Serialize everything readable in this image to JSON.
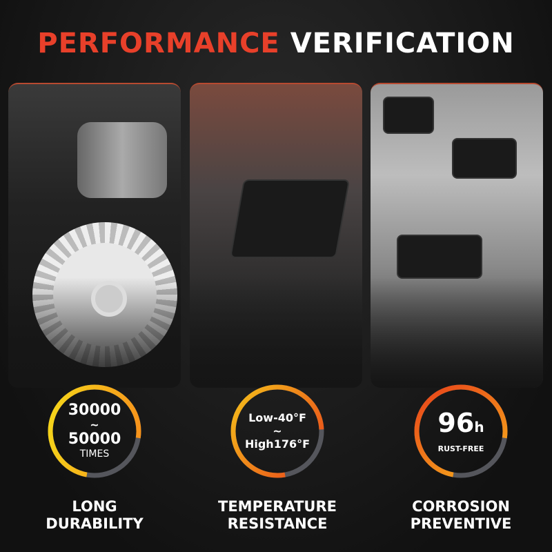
{
  "title": {
    "accent": "PERFORMANCE",
    "rest": "VERIFICATION"
  },
  "colors": {
    "accent": "#e8402a",
    "ring_orange": "#f7a21b",
    "ring_red": "#e8401a",
    "ring_yellow": "#f5d21a",
    "ring_gray": "#55565c"
  },
  "features": [
    {
      "line1": "30000",
      "sep": "~",
      "line2": "50000",
      "unit": "TIMES",
      "label1": "LONG",
      "label2": "DURABILITY"
    },
    {
      "line1": "Low-40°F",
      "sep": "~",
      "line2": "High176°F",
      "label1": "TEMPERATURE",
      "label2": "RESISTANCE"
    },
    {
      "big": "96",
      "big_unit": "h",
      "sub": "RUST-FREE",
      "label1": "CORROSION",
      "label2": "PREVENTIVE"
    }
  ]
}
